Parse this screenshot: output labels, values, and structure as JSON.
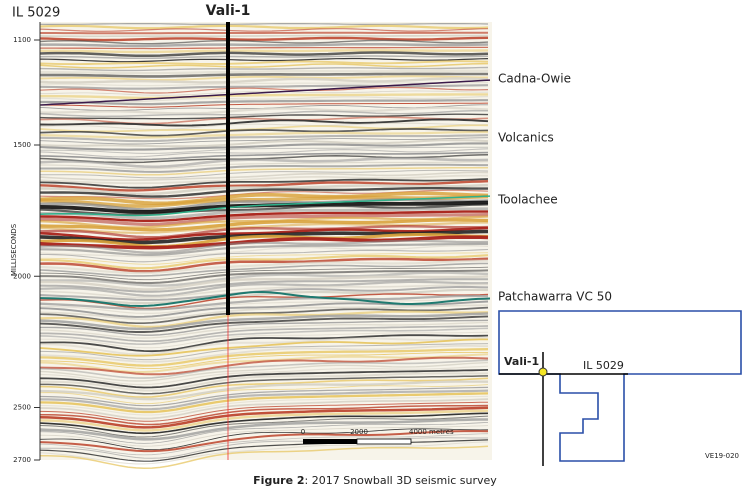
{
  "section": {
    "line_label": "IL 5029",
    "well_label": "Vali-1",
    "y_axis": {
      "label": "MILLISECONDS",
      "ylim": [
        1100,
        2700
      ],
      "yticks": [
        1100,
        1500,
        2000,
        2500,
        2700
      ]
    },
    "horizons": [
      "Cadna-Owie",
      "Volcanics",
      "Toolachee",
      "Patchawarra VC 50"
    ],
    "scale_bar": [
      "0",
      "2000",
      "4000 metres"
    ]
  },
  "inset": {
    "well_label": "Vali-1",
    "line_label": "IL 5029",
    "code": "VE19-020"
  },
  "caption": {
    "bold": "Figure 2",
    "text": ": 2017 Snowball 3D seismic survey"
  }
}
